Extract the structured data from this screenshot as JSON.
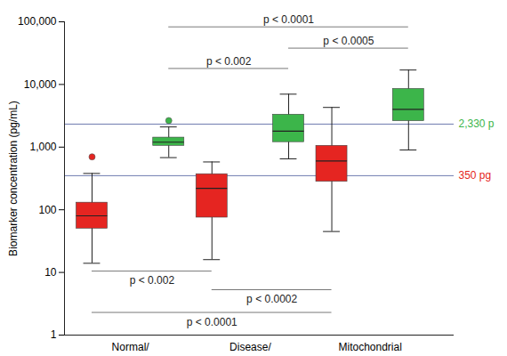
{
  "chart_data": {
    "type": "box",
    "y_label": "Biomarker concentration (pg/mL)",
    "categories": [
      "Normal/",
      "Disease/",
      "Mitochondrial"
    ],
    "log": "y",
    "ylim": [
      1,
      100000
    ],
    "yticks": [
      1,
      10,
      100,
      {
        "value": 1000,
        "label": "1,000"
      },
      {
        "value": 10000,
        "label": "10,000"
      },
      {
        "value": 100000,
        "label": "100,000"
      }
    ],
    "series": [
      {
        "color": "#e52521",
        "boxes": [
          {
            "min": 14,
            "q1": 50,
            "median": 80,
            "q3": 130,
            "max": 380,
            "outliers": [
              700
            ]
          },
          {
            "min": 16,
            "q1": 75,
            "median": 220,
            "q3": 370,
            "max": 580,
            "outliers": []
          },
          {
            "min": 45,
            "q1": 280,
            "median": 600,
            "q3": 1050,
            "max": 4300,
            "outliers": []
          }
        ],
        "brackets": [
          {
            "from": "Normal/",
            "to": "Disease/",
            "y": 10.5,
            "text": "p < 0.002"
          },
          {
            "from": "Disease/",
            "to": "Mitochondrial",
            "y": 5.3,
            "text": "p < 0.0002"
          },
          {
            "from": "Normal/",
            "to": "Mitochondrial",
            "y": 2.3,
            "text": "p < 0.0001"
          }
        ]
      },
      {
        "color": "#3cb54a",
        "boxes": [
          {
            "min": 680,
            "q1": 1050,
            "median": 1200,
            "q3": 1420,
            "max": 2100,
            "outliers": [
              2650
            ]
          },
          {
            "min": 650,
            "q1": 1200,
            "median": 1800,
            "q3": 3300,
            "max": 7000,
            "outliers": []
          },
          {
            "min": 900,
            "q1": 2600,
            "median": 4000,
            "q3": 8500,
            "max": 17000,
            "outliers": []
          }
        ],
        "brackets": [
          {
            "from": "Normal/",
            "to": "Mitochondrial",
            "y": 83000,
            "text": "p < 0.0001"
          },
          {
            "from": "Disease/",
            "to": "Mitochondrial",
            "y": 38000,
            "text": "p < 0.0005"
          },
          {
            "from": "Normal/",
            "to": "Disease/",
            "y": 18000,
            "text": "p < 0.002"
          }
        ]
      }
    ],
    "reference_lines": [
      {
        "value": 2330,
        "label": "2,330 p",
        "color": "#3cb54a"
      },
      {
        "value": 350,
        "label": "350 pg",
        "color": "#e52521"
      }
    ]
  }
}
